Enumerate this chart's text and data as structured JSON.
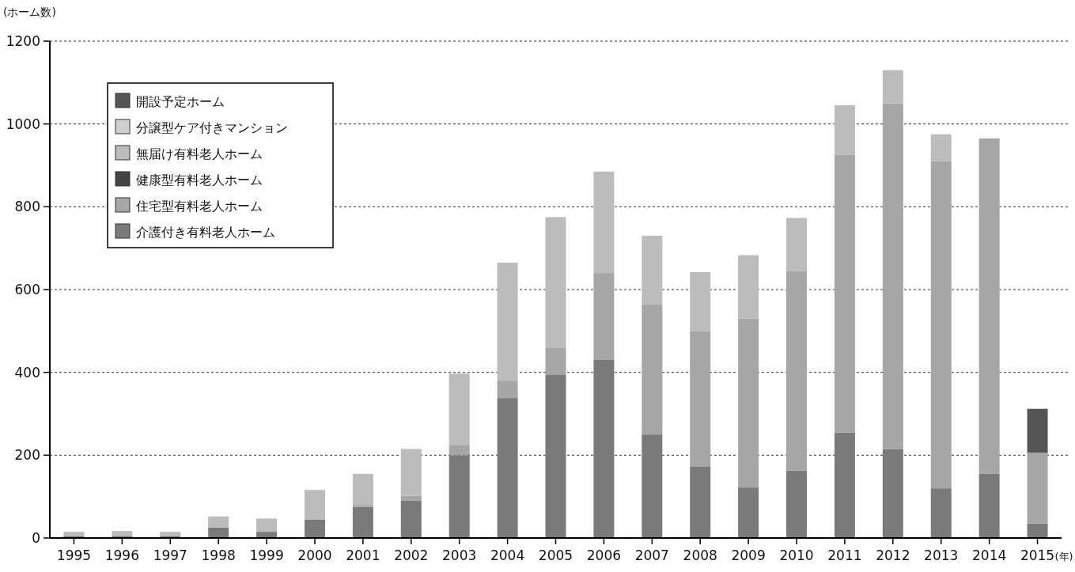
{
  "chart_data": {
    "type": "bar",
    "stacked": true,
    "ylabel": "(ホーム数)",
    "xlabel": "(年)",
    "categories": [
      "1995",
      "1996",
      "1997",
      "1998",
      "1999",
      "2000",
      "2001",
      "2002",
      "2003",
      "2004",
      "2005",
      "2006",
      "2007",
      "2008",
      "2009",
      "2010",
      "2011",
      "2012",
      "2013",
      "2014",
      "2015"
    ],
    "series": [
      {
        "name": "介護付き有料老人ホーム",
        "color": "#7a7a7a",
        "values": [
          5,
          5,
          5,
          25,
          15,
          44,
          75,
          90,
          200,
          338,
          395,
          430,
          250,
          172,
          122,
          163,
          255,
          215,
          120,
          155,
          35
        ]
      },
      {
        "name": "住宅型有料老人ホーム",
        "color": "#a6a6a6",
        "values": [
          0,
          0,
          0,
          0,
          0,
          0,
          5,
          12,
          25,
          42,
          65,
          210,
          315,
          328,
          408,
          482,
          670,
          835,
          790,
          810,
          171
        ]
      },
      {
        "name": "健康型有料老人ホーム",
        "color": "#444444",
        "values": [
          0,
          0,
          0,
          0,
          0,
          0,
          0,
          0,
          0,
          0,
          0,
          0,
          0,
          0,
          0,
          0,
          0,
          0,
          0,
          0,
          0
        ]
      },
      {
        "name": "無届け有料老人ホーム",
        "color": "#bcbcbc",
        "values": [
          10,
          12,
          10,
          27,
          32,
          72,
          75,
          113,
          172,
          285,
          315,
          245,
          165,
          142,
          153,
          128,
          120,
          80,
          65,
          0,
          0
        ]
      },
      {
        "name": "分譲型ケア付きマンション",
        "color": "#cfcfcf",
        "values": [
          0,
          0,
          0,
          0,
          0,
          0,
          0,
          0,
          0,
          0,
          0,
          0,
          0,
          0,
          0,
          0,
          0,
          0,
          0,
          0,
          0
        ]
      },
      {
        "name": "開設予定ホーム",
        "color": "#555555",
        "values": [
          0,
          0,
          0,
          0,
          0,
          0,
          0,
          0,
          0,
          0,
          0,
          0,
          0,
          0,
          0,
          0,
          0,
          0,
          0,
          0,
          106
        ]
      }
    ],
    "ylim": [
      0,
      1200
    ],
    "yticks": [
      0,
      200,
      400,
      600,
      800,
      1000,
      1200
    ],
    "grid": "y",
    "legend": "top left"
  }
}
